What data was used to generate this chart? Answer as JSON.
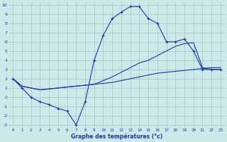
{
  "x_ticks": [
    0,
    1,
    2,
    3,
    4,
    5,
    6,
    7,
    8,
    9,
    10,
    11,
    12,
    13,
    14,
    15,
    16,
    17,
    18,
    19,
    20,
    21,
    22,
    23
  ],
  "line1_x": [
    0,
    1,
    2,
    3,
    4,
    5,
    6,
    7,
    8,
    9,
    10,
    11,
    12,
    13,
    14,
    15,
    16,
    17,
    18,
    19,
    20,
    21,
    22,
    23
  ],
  "line1_y": [
    2,
    1,
    0,
    -0.5,
    -0.8,
    -1.2,
    -1.5,
    -3,
    -0.5,
    4,
    6.7,
    8.5,
    9.2,
    9.8,
    9.8,
    8.5,
    8.0,
    6.0,
    6.0,
    6.3,
    5.0,
    3.0,
    3.0,
    3.0
  ],
  "line2_x": [
    0,
    1,
    2,
    3,
    4,
    5,
    6,
    7,
    8,
    9,
    10,
    11,
    12,
    13,
    14,
    15,
    16,
    17,
    18,
    19,
    20,
    21,
    22,
    23
  ],
  "line2_y": [
    2.0,
    1.2,
    1.0,
    0.8,
    0.9,
    1.0,
    1.1,
    1.2,
    1.3,
    1.4,
    1.5,
    1.6,
    1.8,
    2.0,
    2.2,
    2.4,
    2.6,
    2.7,
    2.8,
    2.9,
    3.0,
    3.1,
    3.2,
    3.2
  ],
  "line3_x": [
    0,
    1,
    2,
    3,
    4,
    5,
    6,
    7,
    8,
    9,
    10,
    11,
    12,
    13,
    14,
    15,
    16,
    17,
    18,
    19,
    20,
    21,
    22,
    23
  ],
  "line3_y": [
    2.0,
    1.2,
    1.0,
    0.8,
    0.9,
    1.0,
    1.1,
    1.2,
    1.3,
    1.4,
    1.8,
    2.2,
    2.7,
    3.2,
    3.7,
    4.0,
    4.5,
    5.0,
    5.5,
    5.8,
    5.9,
    3.2,
    3.0,
    3.0
  ],
  "line_color": "#1a3a9e",
  "bg_color": "#cce8e8",
  "grid_color": "#a0c8c8",
  "xlabel": "Graphe des températures (°c)",
  "xlabel_color": "#1a3a9e",
  "ylabel_min": -3,
  "ylabel_max": 10
}
